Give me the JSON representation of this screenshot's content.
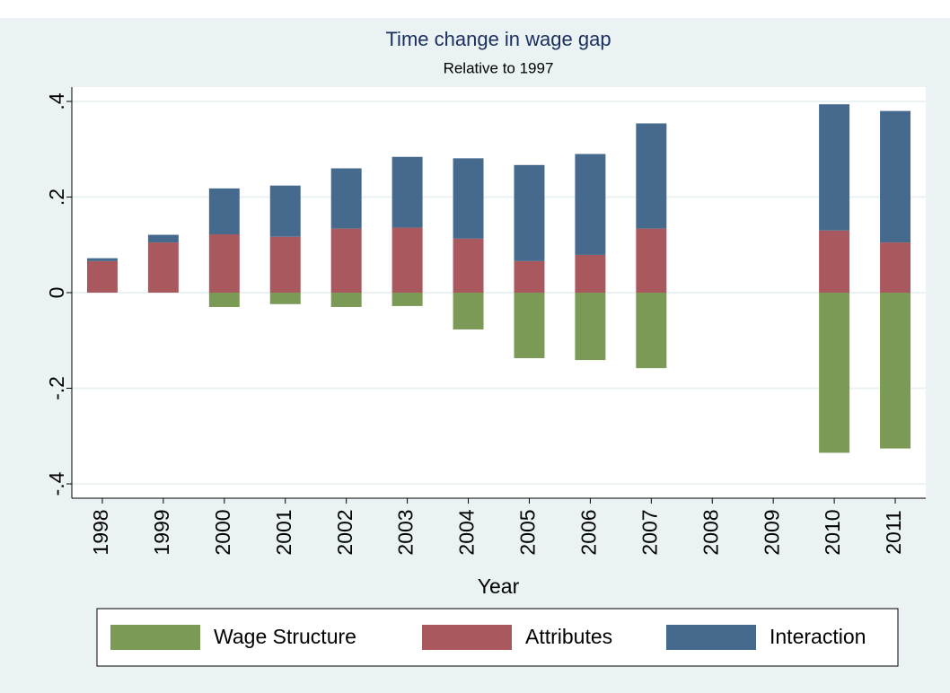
{
  "chart_data": {
    "type": "bar",
    "stacked": true,
    "title": "Time change in wage gap",
    "subtitle": "Relative to 1997",
    "x_label": "Year",
    "categories": [
      "1998",
      "1999",
      "2000",
      "2001",
      "2002",
      "2003",
      "2004",
      "2005",
      "2006",
      "2007",
      "2008",
      "2009",
      "2010",
      "2011"
    ],
    "series": [
      {
        "name": "Wage Structure",
        "color": "#7a9a55",
        "values": [
          0,
          0,
          -0.03,
          -0.024,
          -0.03,
          -0.028,
          -0.077,
          -0.137,
          -0.141,
          -0.158,
          null,
          null,
          -0.335,
          -0.326
        ]
      },
      {
        "name": "Attributes",
        "color": "#a9585e",
        "values": [
          0.066,
          0.105,
          0.122,
          0.117,
          0.134,
          0.136,
          0.113,
          0.066,
          0.079,
          0.134,
          null,
          null,
          0.13,
          0.105
        ]
      },
      {
        "name": "Interaction",
        "color": "#466a8e",
        "values": [
          0.006,
          0.016,
          0.096,
          0.107,
          0.126,
          0.148,
          0.168,
          0.201,
          0.211,
          0.22,
          null,
          null,
          0.264,
          0.275
        ]
      }
    ],
    "ylim": [
      -0.43,
      0.43
    ],
    "yticks": [
      {
        "value": -0.4,
        "label": "-.4"
      },
      {
        "value": -0.2,
        "label": "-.2"
      },
      0,
      {
        "value": 0.2,
        "label": ".2"
      },
      {
        "value": 0.4,
        "label": ".4"
      }
    ],
    "grid": true,
    "legend": "bottom"
  }
}
